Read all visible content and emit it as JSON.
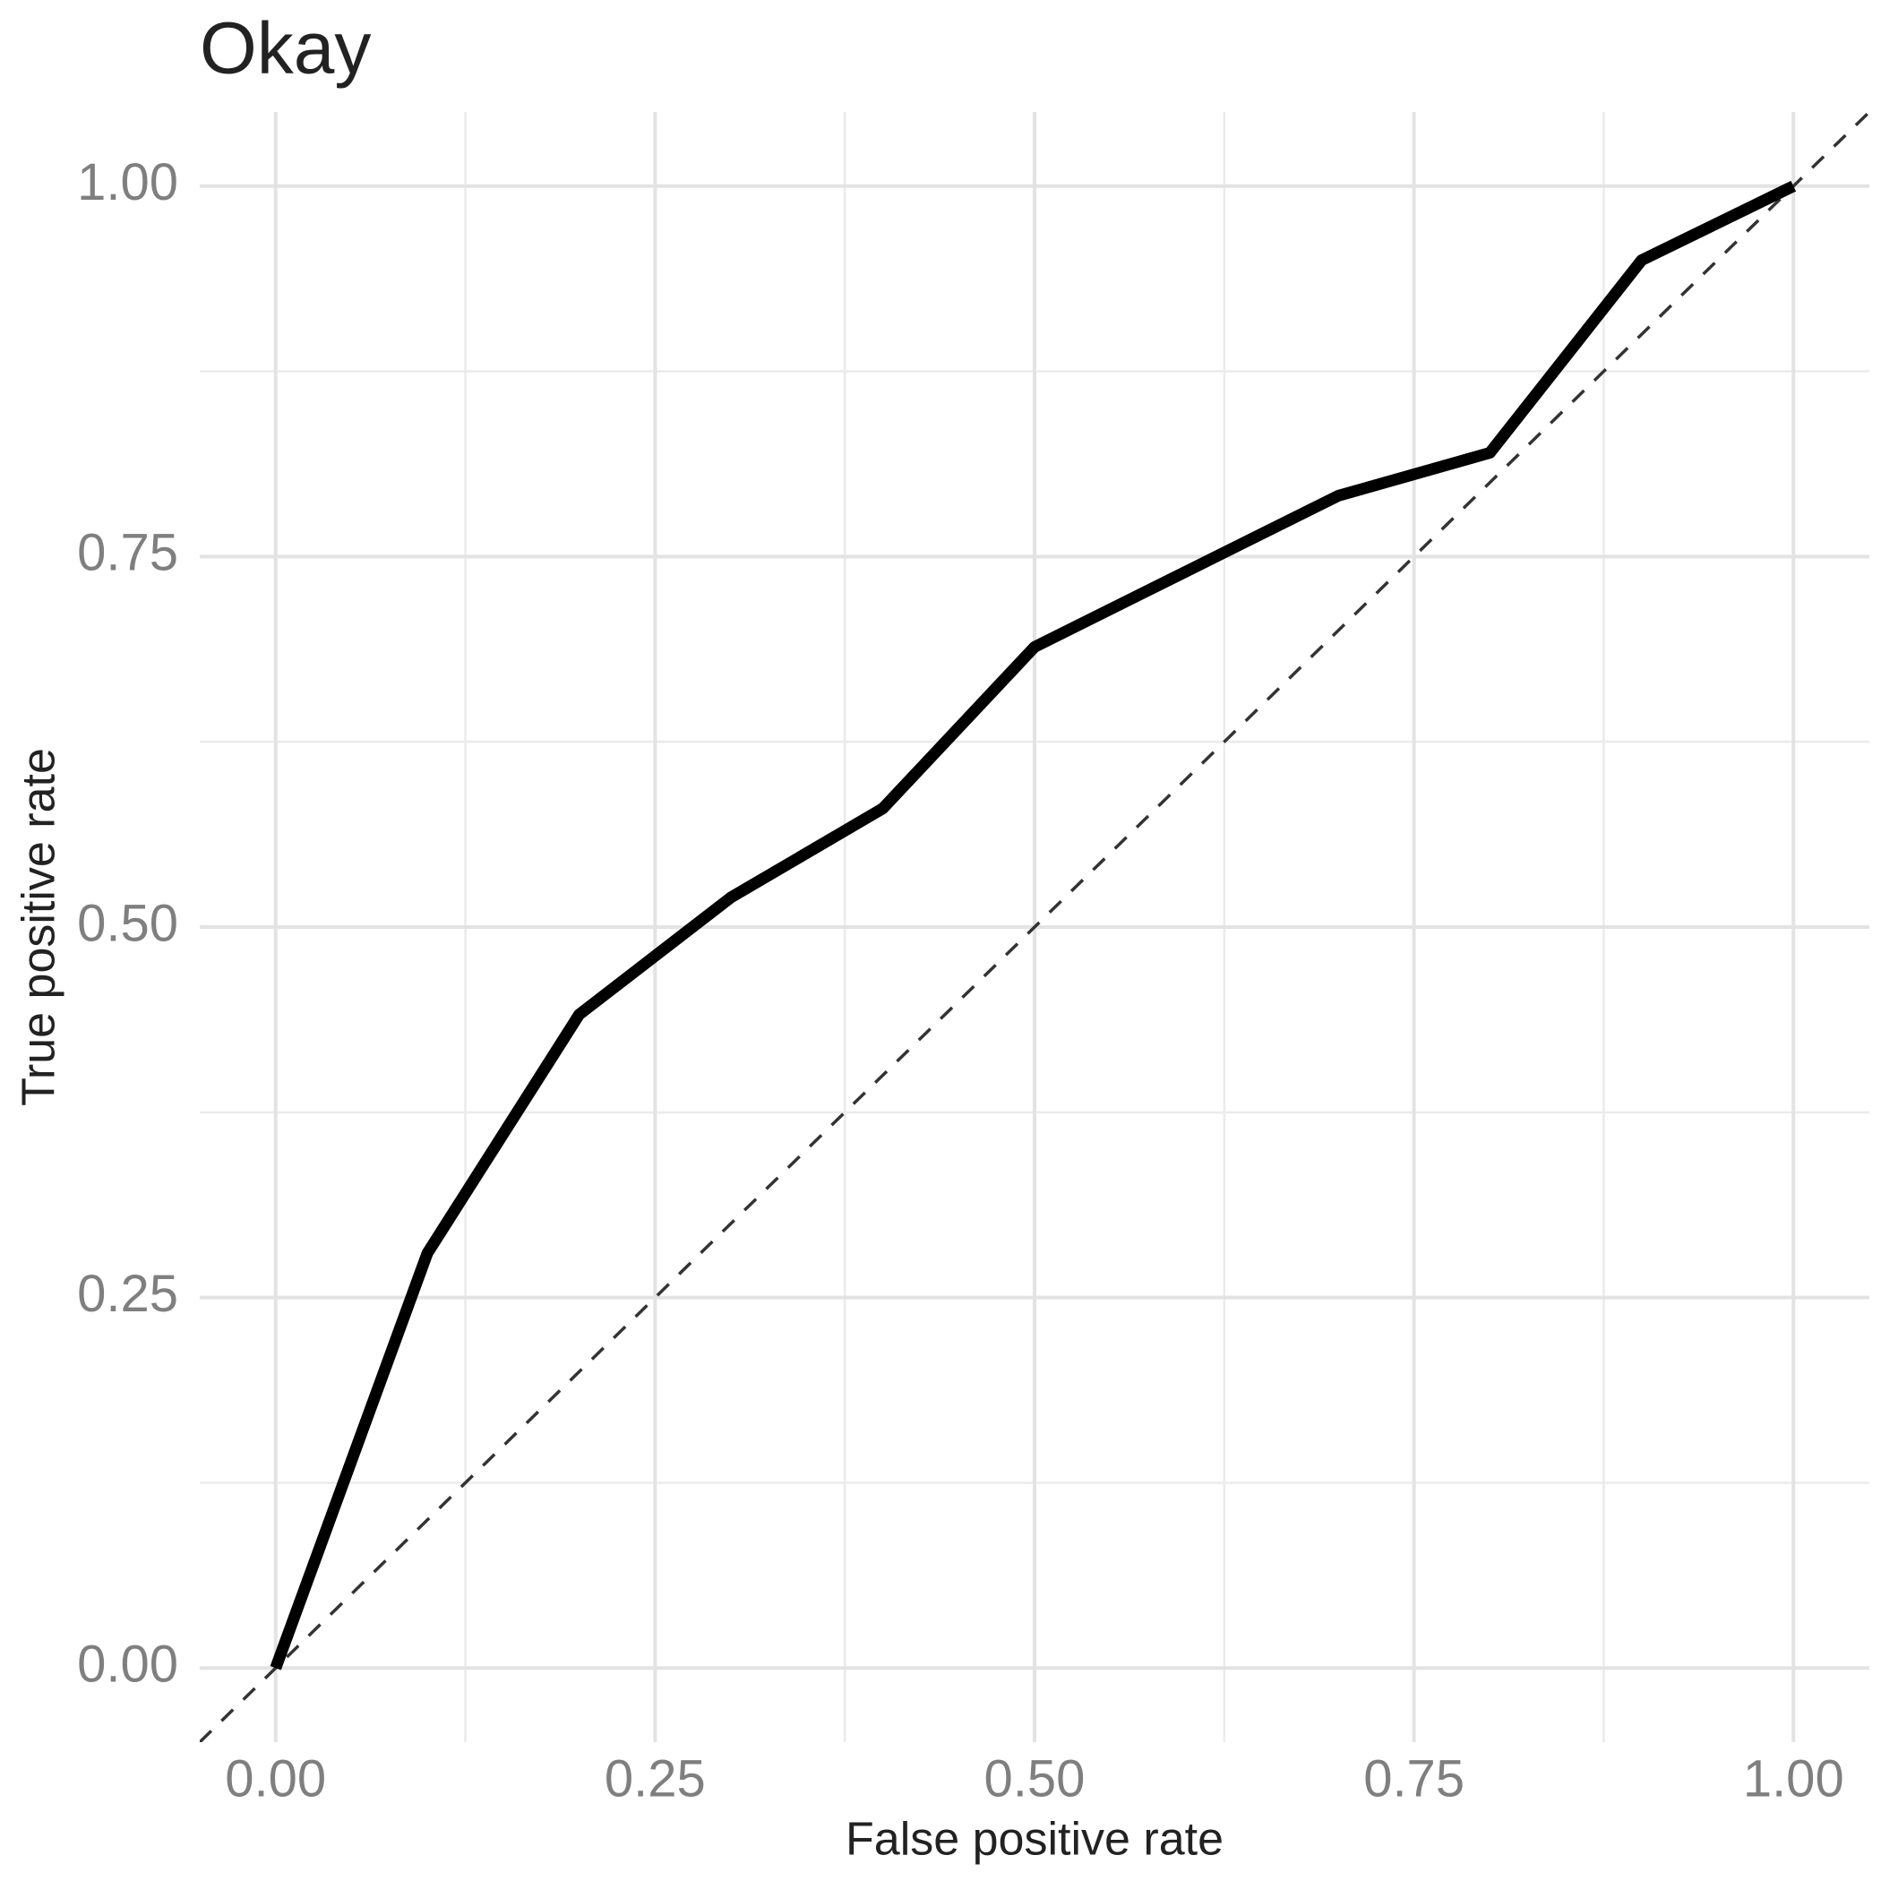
{
  "chart_data": {
    "type": "line",
    "title": "Okay",
    "x_label": "False positive rate",
    "y_label": "True positive rate",
    "x": [
      0,
      0.1,
      0.2,
      0.3,
      0.4,
      0.5,
      0.6,
      0.7,
      0.8,
      0.9,
      1.0
    ],
    "series": [
      {
        "color": "#000000",
        "values": [
          0,
          0.28,
          0.441,
          0.52,
          0.58,
          0.689,
          0.74,
          0.791,
          0.82,
          0.95,
          1.0
        ]
      }
    ],
    "xlim": [
      -0.05,
      1.05
    ],
    "ylim": [
      -0.05,
      1.05
    ],
    "xticks": [
      {
        "value": 0,
        "label": "0.00"
      },
      {
        "value": 0.25,
        "label": "0.25"
      },
      {
        "value": 0.5,
        "label": "0.50"
      },
      {
        "value": 0.75,
        "label": "0.75"
      },
      {
        "value": 1,
        "label": "1.00"
      }
    ],
    "yticks": [
      {
        "value": 0,
        "label": "0.00"
      },
      {
        "value": 0.25,
        "label": "0.25"
      },
      {
        "value": 0.5,
        "label": "0.50"
      },
      {
        "value": 0.75,
        "label": "0.75"
      },
      {
        "value": 1,
        "label": "1.00"
      }
    ],
    "x_minor_ticks": [
      0.125,
      0.375,
      0.625,
      0.875
    ],
    "y_minor_ticks": [
      0.125,
      0.375,
      0.625,
      0.875
    ],
    "reference_line": {
      "slope": 1,
      "intercept": 0,
      "color": "#333333"
    },
    "grid": true
  }
}
